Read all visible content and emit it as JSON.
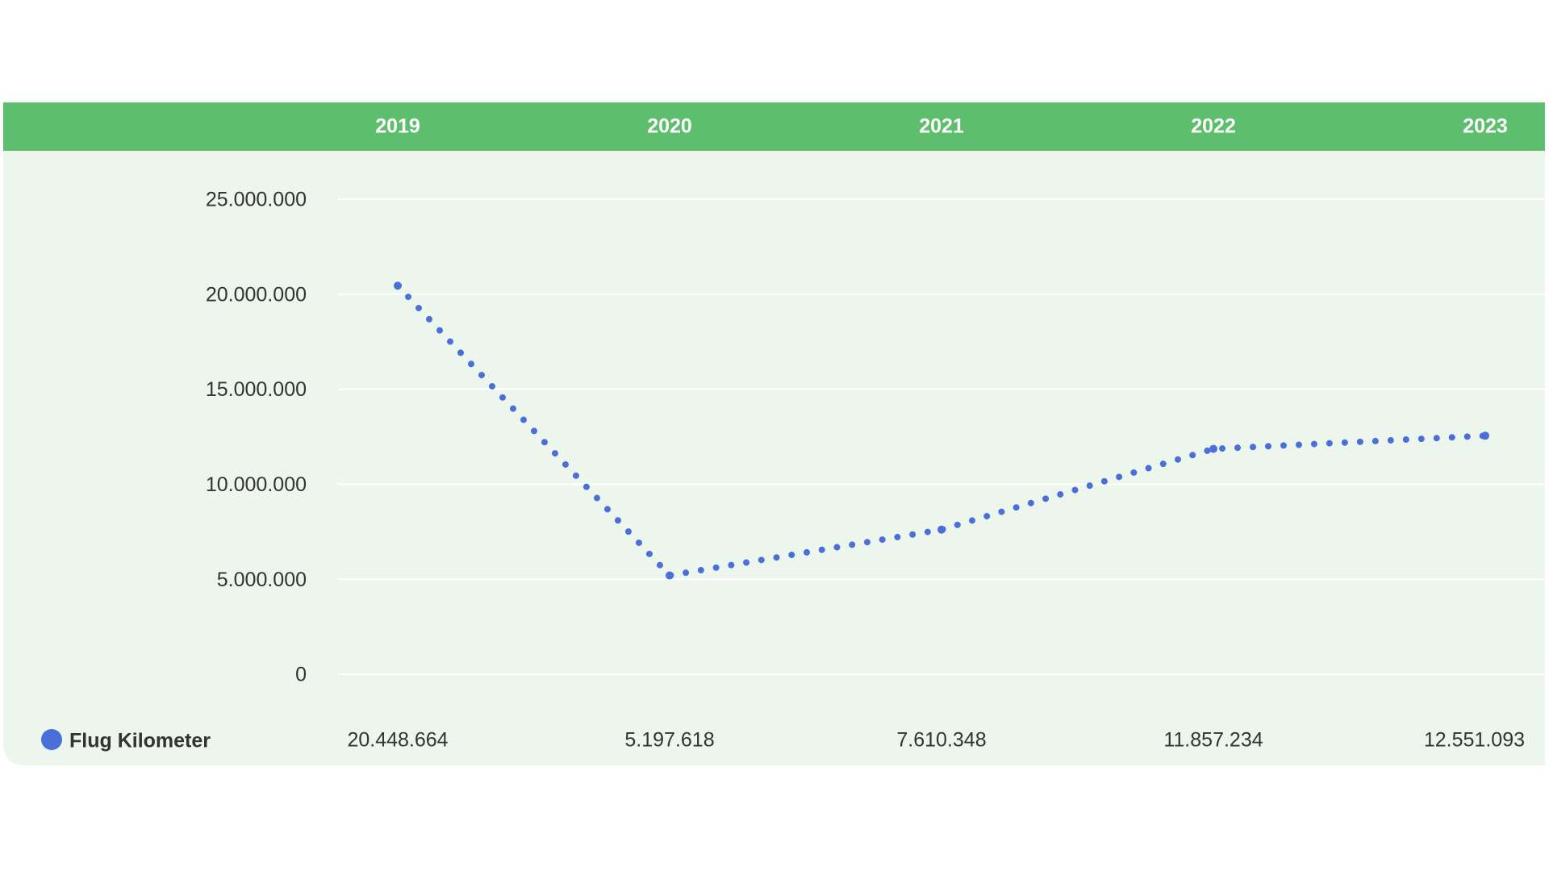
{
  "chart_data": {
    "type": "line",
    "categories": [
      "2019",
      "2020",
      "2021",
      "2022",
      "2023"
    ],
    "series": [
      {
        "name": "Flug Kilometer",
        "color": "#4a6fd8",
        "values": [
          20448664,
          5197618,
          7610348,
          11857234,
          12551093
        ],
        "value_labels": [
          "20.448.664",
          "5.197.618",
          "7.610.348",
          "11.857.234",
          "12.551.093"
        ]
      }
    ],
    "ylim": [
      0,
      25000000
    ],
    "yticks": [
      0,
      {
        "value": 5000000,
        "label": "5.000.000"
      },
      {
        "value": 10000000,
        "label": "10.000.000"
      },
      {
        "value": 15000000,
        "label": "15.000.000"
      },
      {
        "value": 20000000,
        "label": "20.000.000"
      },
      {
        "value": 25000000,
        "label": "25.000.000"
      }
    ],
    "grid": true,
    "line_style": "dotted",
    "header_color": "#5dbf6d",
    "background_color": "#ecf6ec"
  }
}
